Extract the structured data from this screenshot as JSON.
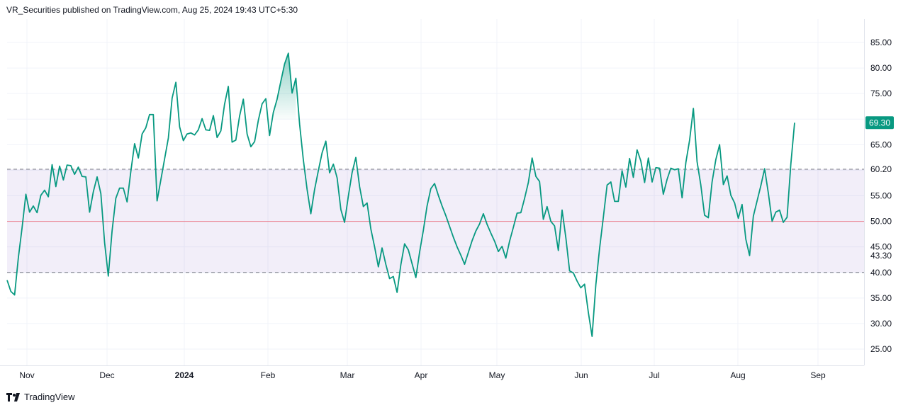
{
  "header": {
    "publisher_line": "VR_Securities published on TradingView.com, Aug 25, 2024 19:43 UTC+5:30"
  },
  "footer": {
    "brand": "TradingView"
  },
  "colors": {
    "line": "#089981",
    "band_fill": "#7e57c2",
    "midline": "#f23645",
    "band_border": "#787b86",
    "grid": "#f0f3fa",
    "axis_text": "#131722",
    "badge_bg": "#089981"
  },
  "chart_data": {
    "type": "line",
    "y_ticks": [
      "85.00",
      "80.00",
      "75.00",
      "65.00",
      "60.20",
      "55.00",
      "50.00",
      "45.00",
      "43.30",
      "40.00",
      "35.00",
      "30.00",
      "25.00"
    ],
    "x_ticks": [
      "Nov",
      "Dec",
      "2024",
      "Feb",
      "Mar",
      "Apr",
      "May",
      "Jun",
      "Jul",
      "Aug",
      "Sep"
    ],
    "ylim": [
      22,
      89
    ],
    "band": {
      "upper": 60.2,
      "lower": 40,
      "mid": 50
    },
    "last_value_label": "69.30",
    "last_value": 69.3,
    "grid": true,
    "series": [
      {
        "values": [
          38.5,
          36.3,
          35.6,
          42.9,
          48.8,
          55.3,
          51.8,
          53.0,
          51.7,
          55.1,
          56.1,
          54.8,
          61.1,
          56.8,
          60.8,
          58.1,
          61.0,
          60.9,
          59.2,
          60.6,
          58.8,
          58.7,
          51.8,
          55.8,
          58.7,
          55.4,
          45.8,
          39.3,
          48.1,
          54.5,
          56.5,
          56.5,
          53.8,
          59.8,
          65.2,
          62.4,
          67.1,
          68.3,
          70.9,
          70.9,
          54.0,
          58.1,
          62.2,
          66.3,
          74.1,
          77.2,
          68.5,
          65.8,
          67.1,
          67.3,
          66.9,
          67.9,
          70.1,
          67.9,
          67.8,
          70.7,
          66.4,
          67.7,
          72.9,
          76.4,
          65.5,
          65.9,
          70.6,
          73.9,
          67.1,
          64.6,
          65.6,
          69.8,
          73.0,
          74.0,
          66.8,
          71.3,
          73.9,
          77.4,
          80.8,
          82.9,
          75.1,
          78.0,
          69.0,
          62.1,
          56.3,
          51.5,
          56.2,
          59.9,
          63.4,
          65.7,
          59.5,
          61.2,
          58.5,
          52.3,
          49.8,
          54.9,
          59.5,
          62.5,
          56.8,
          52.9,
          53.6,
          48.5,
          45.0,
          41.1,
          44.8,
          41.6,
          38.8,
          39.2,
          36.1,
          41.5,
          45.6,
          44.4,
          41.7,
          39.0,
          44.0,
          48.2,
          53.0,
          56.4,
          57.4,
          55.1,
          53.0,
          51.1,
          49.0,
          46.9,
          45.0,
          43.4,
          41.6,
          43.9,
          46.2,
          48.1,
          49.5,
          51.5,
          49.4,
          47.7,
          46.1,
          44.1,
          45.1,
          42.8,
          46.1,
          48.8,
          51.6,
          51.7,
          54.5,
          57.6,
          62.4,
          58.8,
          57.8,
          50.4,
          52.9,
          50.0,
          49.1,
          44.3,
          52.2,
          46.8,
          40.3,
          39.9,
          38.3,
          37.0,
          37.7,
          32.2,
          27.5,
          37.6,
          44.7,
          50.8,
          57.1,
          57.7,
          53.9,
          53.9,
          59.9,
          56.7,
          62.3,
          58.6,
          64.0,
          61.8,
          57.6,
          62.4,
          57.7,
          60.5,
          60.4,
          55.3,
          58.2,
          60.4,
          60.1,
          60.3,
          54.6,
          61.5,
          65.9,
          72.1,
          61.7,
          57.1,
          51.2,
          50.7,
          57.7,
          62.1,
          65.0,
          57.2,
          58.9,
          55.1,
          53.6,
          50.6,
          53.3,
          46.5,
          43.3,
          51.0,
          54.0,
          57.0,
          60.3,
          55.5,
          50.0,
          51.8,
          52.2,
          49.8,
          50.8,
          61.2,
          69.3
        ]
      }
    ]
  }
}
